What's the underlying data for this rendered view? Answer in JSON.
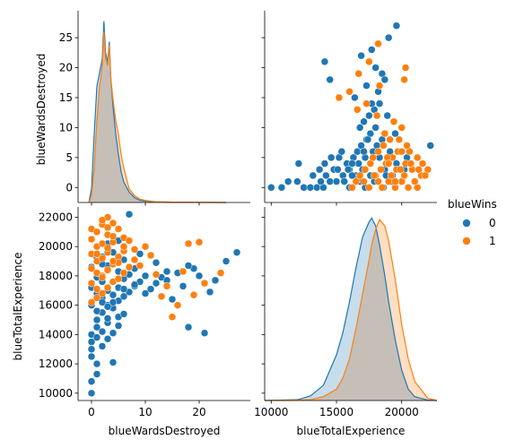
{
  "colors": {
    "class0": "#1f77b4",
    "class1": "#ff7f0e",
    "overlap": "#bbbbbb"
  },
  "chart_data": {
    "type": "pairplot",
    "variables": [
      "blueWardsDestroyed",
      "blueTotalExperience"
    ],
    "hue": "blueWins",
    "legend": {
      "title": "blueWins",
      "entries": [
        "0",
        "1"
      ],
      "placement": "right"
    },
    "axes": {
      "blueWardsDestroyed": {
        "label": "blueWardsDestroyed",
        "lim": [
          -2.5,
          29.5
        ],
        "ticks": [
          0,
          5,
          10,
          15,
          20,
          25
        ],
        "xticks": [
          0,
          10,
          20
        ],
        "tick_labels": [
          "0",
          "5",
          "10",
          "15",
          "20",
          "25"
        ],
        "xtick_labels": [
          "0",
          "10",
          "20"
        ]
      },
      "blueTotalExperience": {
        "label": "blueTotalExperience",
        "lim": [
          9500,
          22700
        ],
        "ticks": [
          10000,
          12000,
          14000,
          16000,
          18000,
          20000,
          22000
        ],
        "xticks": [
          10000,
          15000,
          20000
        ],
        "tick_labels": [
          "10000",
          "12000",
          "14000",
          "16000",
          "18000",
          "20000",
          "22000"
        ],
        "xtick_labels": [
          "10000",
          "15000",
          "20000"
        ]
      }
    },
    "diag_wards": {
      "x": [
        -0.5,
        0,
        0.5,
        1,
        1.5,
        2,
        2.3,
        2.6,
        3,
        3.3,
        3.6,
        4,
        4.5,
        5,
        5.5,
        6,
        7,
        8,
        9,
        10,
        12,
        15,
        20,
        25
      ],
      "class0": [
        0,
        2,
        10,
        17,
        19,
        21,
        26.5,
        22,
        20.5,
        23.5,
        18,
        14,
        10,
        7,
        4.5,
        3,
        1.5,
        0.7,
        0.3,
        0.2,
        0.1,
        0.05,
        0.02,
        0
      ],
      "class1": [
        0,
        1,
        5,
        12,
        17,
        20,
        25,
        21,
        20,
        23,
        18,
        15,
        12,
        10,
        7,
        5,
        2,
        1,
        0.5,
        0.3,
        0.1,
        0.05,
        0.02,
        0
      ]
    },
    "diag_exp": {
      "x": [
        9500,
        12000,
        13000,
        14000,
        15000,
        15500,
        16000,
        16500,
        17000,
        17500,
        17700,
        18000,
        18300,
        18700,
        19000,
        19500,
        20000,
        20500,
        21000,
        22000,
        22700
      ],
      "class0": [
        0.0,
        0.1,
        0.6,
        2.0,
        6.0,
        9.0,
        13.0,
        17.5,
        21.5,
        23.5,
        24.0,
        23.0,
        20.5,
        16.5,
        13.0,
        8.0,
        4.0,
        1.5,
        0.5,
        0.05,
        0.0
      ],
      "class1": [
        0.0,
        0.05,
        0.1,
        0.5,
        1.5,
        3.0,
        5.5,
        9.5,
        14.0,
        18.5,
        20.5,
        22.5,
        23.8,
        23.0,
        21.0,
        16.0,
        10.0,
        5.5,
        2.5,
        0.3,
        0.0
      ]
    },
    "scatter": {
      "class0_wards": [
        0,
        0,
        0,
        0,
        0,
        0,
        1,
        1,
        1,
        1,
        1,
        2,
        2,
        2,
        2,
        3,
        3,
        3,
        3,
        4,
        4,
        4,
        5,
        5,
        5,
        5,
        6,
        6,
        6,
        7,
        7,
        8,
        8,
        9,
        10,
        11,
        12,
        13,
        14,
        15,
        16,
        17,
        18,
        19,
        20,
        21,
        22,
        23,
        25,
        27,
        2,
        1,
        3,
        4,
        0,
        1,
        2,
        5,
        6,
        1,
        3,
        2,
        4,
        0,
        0,
        1,
        2,
        3,
        5,
        7,
        9,
        12,
        14,
        18,
        20,
        3,
        4,
        6,
        8,
        10
      ],
      "class0_exp": [
        10000,
        10800,
        12500,
        13000,
        13500,
        14000,
        11300,
        12000,
        13800,
        14500,
        15000,
        13200,
        14200,
        15500,
        16500,
        13700,
        14800,
        16000,
        17000,
        12100,
        14100,
        15800,
        14600,
        15200,
        16300,
        17200,
        15400,
        16600,
        17800,
        16900,
        18100,
        17300,
        18500,
        17600,
        16800,
        17100,
        17500,
        17900,
        17700,
        16400,
        18200,
        17300,
        14500,
        18500,
        18000,
        14100,
        16900,
        17700,
        19000,
        19600,
        16200,
        15600,
        15100,
        16700,
        16000,
        16800,
        17600,
        18300,
        19100,
        17900,
        18700,
        19300,
        19600,
        17200,
        18600,
        19200,
        18800,
        20200,
        20400,
        22200,
        19500,
        18900,
        18300,
        18700,
        20300,
        15900,
        16200,
        17100,
        17400,
        18000
      ],
      "class1_wards": [
        0,
        0,
        0,
        0,
        0,
        1,
        1,
        1,
        1,
        1,
        2,
        2,
        2,
        2,
        2,
        3,
        3,
        3,
        3,
        3,
        4,
        4,
        4,
        4,
        5,
        5,
        5,
        6,
        6,
        6,
        7,
        7,
        8,
        9,
        10,
        11,
        12,
        14,
        15,
        17,
        18,
        19,
        20,
        24,
        0,
        1,
        2,
        3,
        4,
        5,
        2,
        3,
        1,
        4,
        6,
        8,
        13,
        16,
        21
      ],
      "class1_exp": [
        17500,
        18500,
        19500,
        20500,
        21200,
        16500,
        18200,
        19000,
        20000,
        21000,
        16800,
        18000,
        19200,
        20200,
        21500,
        17200,
        18400,
        19600,
        20800,
        22000,
        17600,
        18800,
        20300,
        21600,
        17800,
        19300,
        21200,
        18200,
        19700,
        20600,
        18600,
        20400,
        19100,
        18700,
        20000,
        19400,
        18100,
        17300,
        15200,
        18300,
        20200,
        16700,
        20300,
        18200,
        16200,
        17100,
        17900,
        19900,
        20700,
        18900,
        21800,
        21300,
        19500,
        19000,
        20000,
        19800,
        16600,
        16000,
        17500
      ]
    }
  }
}
